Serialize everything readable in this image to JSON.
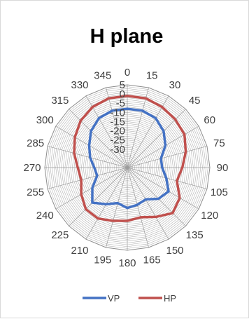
{
  "chart_data": {
    "type": "radar",
    "title": "H plane",
    "angle_labels": [
      "0",
      "15",
      "30",
      "45",
      "60",
      "75",
      "90",
      "105",
      "120",
      "135",
      "150",
      "165",
      "180",
      "195",
      "210",
      "225",
      "240",
      "255",
      "270",
      "285",
      "300",
      "315",
      "330",
      "345"
    ],
    "radial_ticks": [
      5,
      0,
      -5,
      -10,
      -15,
      -20,
      -25,
      -30
    ],
    "rlim": [
      -40,
      5
    ],
    "grid": true,
    "legend_position": "bottom",
    "series": [
      {
        "name": "VP",
        "color": "#4472c4",
        "values": [
          -8,
          -8,
          -9,
          -12,
          -16,
          -21,
          -21,
          -18,
          -14,
          -16,
          -20,
          -19,
          -18,
          -20,
          -17,
          -13,
          -18,
          -23,
          -22,
          -19,
          -16,
          -12,
          -9,
          -8
        ]
      },
      {
        "name": "HP",
        "color": "#c0504d",
        "values": [
          -1,
          -1,
          -2,
          -3,
          -4,
          -7,
          -10,
          -12,
          -7,
          -5,
          -9,
          -12,
          -11,
          -10,
          -8,
          -8,
          -11,
          -14,
          -13,
          -10,
          -7,
          -4,
          -2,
          -1
        ]
      }
    ]
  }
}
